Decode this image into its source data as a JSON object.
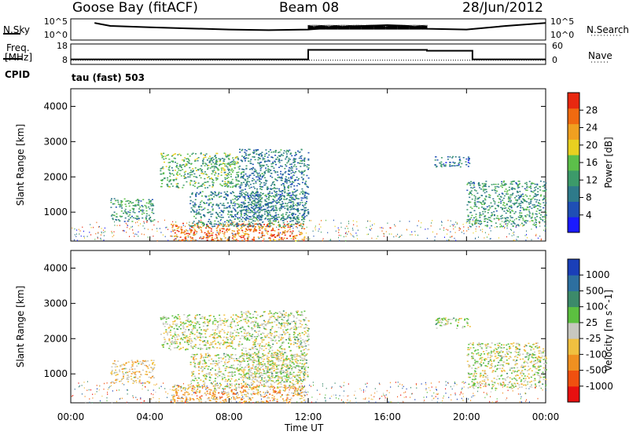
{
  "header": {
    "station": "Goose Bay (fitACF)",
    "beam": "Beam 08",
    "date": "28/Jun/2012"
  },
  "top_labels": {
    "nsky": "N.Sky",
    "nsearch": "N.Search",
    "freq_line1": "Freq.",
    "freq_line2": "[MHz]",
    "cpid": "CPID",
    "nave": "Nave",
    "cpid_value": "tau (fast) 503",
    "noise_ticks": [
      "10^5",
      "10^0"
    ],
    "noise_ticks_right": [
      "10^5",
      "10^0"
    ],
    "freq_ticks": [
      "18",
      "8"
    ],
    "nave_ticks": [
      "60",
      "0"
    ]
  },
  "axes": {
    "y_label": "Slant Range [km]",
    "x_label": "Time UT",
    "x_ticks": [
      "00:00",
      "04:00",
      "08:00",
      "12:00",
      "16:00",
      "20:00",
      "00:00"
    ],
    "y_ticks": [
      "1000",
      "2000",
      "3000",
      "4000"
    ]
  },
  "colorbars": {
    "power": {
      "label": "Power [dB]",
      "ticks": [
        "4",
        "8",
        "12",
        "16",
        "20",
        "24",
        "28"
      ],
      "colors": [
        "#1a1aff",
        "#1f4fb5",
        "#2e7a8a",
        "#3c9a6a",
        "#5cbf4a",
        "#e8d020",
        "#f0a020",
        "#f06a10",
        "#e82810"
      ]
    },
    "velocity": {
      "label": "Velocity [m s^-1]",
      "ticks": [
        "1000",
        "500",
        "100",
        "25",
        "-25",
        "-100",
        "-500",
        "-1000"
      ],
      "colors": [
        "#1a3fb8",
        "#2d6fa0",
        "#3c8a6a",
        "#5cc040",
        "#c8c8c0",
        "#f0c040",
        "#f09020",
        "#f05010",
        "#e81010"
      ]
    }
  },
  "chart_data": [
    {
      "type": "line",
      "title": "N.Sky / N.Search",
      "x_range": [
        "00:00",
        "24:00"
      ],
      "yscale": "log",
      "ylim": [
        1,
        100000
      ],
      "series": [
        {
          "name": "N.Sky",
          "x": [
            1.2,
            2,
            4,
            6,
            8,
            10,
            12,
            14,
            16,
            17,
            18,
            20,
            22,
            24
          ],
          "values": [
            20000,
            3000,
            1200,
            600,
            300,
            200,
            300,
            2000,
            5000,
            3000,
            500,
            300,
            3000,
            20000
          ]
        }
      ]
    },
    {
      "type": "line",
      "title": "Freq. [MHz] / Nave",
      "x_range": [
        "00:00",
        "24:00"
      ],
      "ylim": [
        8,
        18
      ],
      "series": [
        {
          "name": "Freq.",
          "x": [
            0,
            12,
            12,
            18,
            18,
            20.3,
            20.3,
            24
          ],
          "values": [
            10,
            10,
            15.5,
            15.5,
            15,
            15,
            10,
            10
          ]
        },
        {
          "name": "Nave",
          "x": [
            0,
            24
          ],
          "values": [
            10,
            10
          ]
        }
      ]
    },
    {
      "type": "heatmap",
      "title": "Power [dB]",
      "xlabel": "Time UT",
      "ylabel": "Slant Range [km]",
      "x_range_hours": [
        0,
        24
      ],
      "ylim": [
        180,
        4500
      ],
      "regions": [
        {
          "t": [
            2.0,
            4.2
          ],
          "r": [
            750,
            1400
          ],
          "value": 12
        },
        {
          "t": [
            4.5,
            8.5
          ],
          "r": [
            1700,
            2700
          ],
          "value": 14
        },
        {
          "t": [
            5.0,
            11.8
          ],
          "r": [
            200,
            700
          ],
          "value": 26
        },
        {
          "t": [
            6.0,
            11.8
          ],
          "r": [
            600,
            1600
          ],
          "value": 10
        },
        {
          "t": [
            8.5,
            12.0
          ],
          "r": [
            800,
            2800
          ],
          "value": 9
        },
        {
          "t": [
            20.0,
            24.0
          ],
          "r": [
            600,
            1900
          ],
          "value": 12
        },
        {
          "t": [
            18.3,
            20.2
          ],
          "r": [
            2300,
            2600
          ],
          "value": 8
        }
      ]
    },
    {
      "type": "heatmap",
      "title": "Velocity [m s^-1]",
      "xlabel": "Time UT",
      "ylabel": "Slant Range [km]",
      "x_range_hours": [
        0,
        24
      ],
      "ylim": [
        180,
        4500
      ],
      "regions": [
        {
          "t": [
            2.0,
            4.2
          ],
          "r": [
            750,
            1400
          ],
          "value": -200
        },
        {
          "t": [
            4.5,
            8.5
          ],
          "r": [
            1700,
            2700
          ],
          "value": 0
        },
        {
          "t": [
            5.0,
            11.8
          ],
          "r": [
            200,
            700
          ],
          "value": -300
        },
        {
          "t": [
            6.0,
            11.8
          ],
          "r": [
            600,
            1600
          ],
          "value": 0
        },
        {
          "t": [
            8.5,
            12.0
          ],
          "r": [
            800,
            2800
          ],
          "value": 50
        },
        {
          "t": [
            20.0,
            24.0
          ],
          "r": [
            600,
            1900
          ],
          "value": 0
        },
        {
          "t": [
            18.3,
            20.2
          ],
          "r": [
            2300,
            2600
          ],
          "value": 0
        }
      ]
    }
  ]
}
